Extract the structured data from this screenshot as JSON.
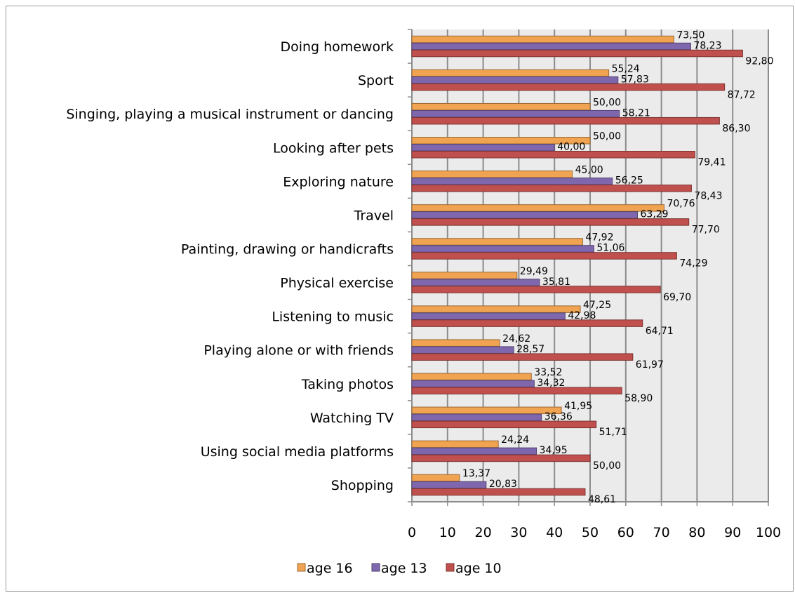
{
  "chart_data": {
    "type": "bar",
    "orientation": "horizontal",
    "categories": [
      "Doing homework",
      "Sport",
      "Singing, playing a musical instrument or dancing",
      "Looking after pets",
      "Exploring nature",
      "Travel",
      "Painting, drawing or handicrafts",
      "Physical exercise",
      "Listening to music",
      "Playing alone or with friends",
      "Taking photos",
      "Watching TV",
      "Using social media platforms",
      "Shopping"
    ],
    "series": [
      {
        "name": "age 16",
        "color": "#f0a350",
        "values": [
          73.5,
          55.24,
          50.0,
          50.0,
          45.0,
          70.76,
          47.92,
          29.49,
          47.25,
          24.62,
          33.52,
          41.95,
          24.24,
          13.37
        ],
        "labels": [
          "73,50",
          "55,24",
          "50,00",
          "50,00",
          "45,00",
          "70,76",
          "47,92",
          "29,49",
          "47,25",
          "24,62",
          "33,52",
          "41,95",
          "24,24",
          "13,37"
        ]
      },
      {
        "name": "age 13",
        "color": "#7f67ad",
        "values": [
          78.23,
          57.83,
          58.21,
          40.0,
          56.25,
          63.29,
          51.06,
          35.81,
          42.98,
          28.57,
          34.32,
          36.36,
          34.95,
          20.83
        ],
        "labels": [
          "78,23",
          "57,83",
          "58,21",
          "40,00",
          "56,25",
          "63,29",
          "51,06",
          "35,81",
          "42,98",
          "28,57",
          "34,32",
          "36,36",
          "34,95",
          "20,83"
        ]
      },
      {
        "name": "age 10",
        "color": "#c0504d",
        "values": [
          92.8,
          87.72,
          86.3,
          79.41,
          78.43,
          77.7,
          74.29,
          69.7,
          64.71,
          61.97,
          58.9,
          51.71,
          50.0,
          48.61
        ],
        "labels": [
          "92,80",
          "87,72",
          "86,30",
          "79,41",
          "78,43",
          "77,70",
          "74,29",
          "69,70",
          "64,71",
          "61,97",
          "58,90",
          "51,71",
          "50,00",
          "48,61"
        ]
      }
    ],
    "xlim": [
      0,
      100
    ],
    "xticks": [
      "0",
      "10",
      "20",
      "30",
      "40",
      "50",
      "60",
      "70",
      "80",
      "90",
      "100"
    ],
    "grid": true,
    "plot_background": "#ebebeb",
    "gridline_color": "#8c8c8c",
    "legend_position": "bottom",
    "legend_order": [
      "age 16",
      "age 13",
      "age 10"
    ]
  }
}
